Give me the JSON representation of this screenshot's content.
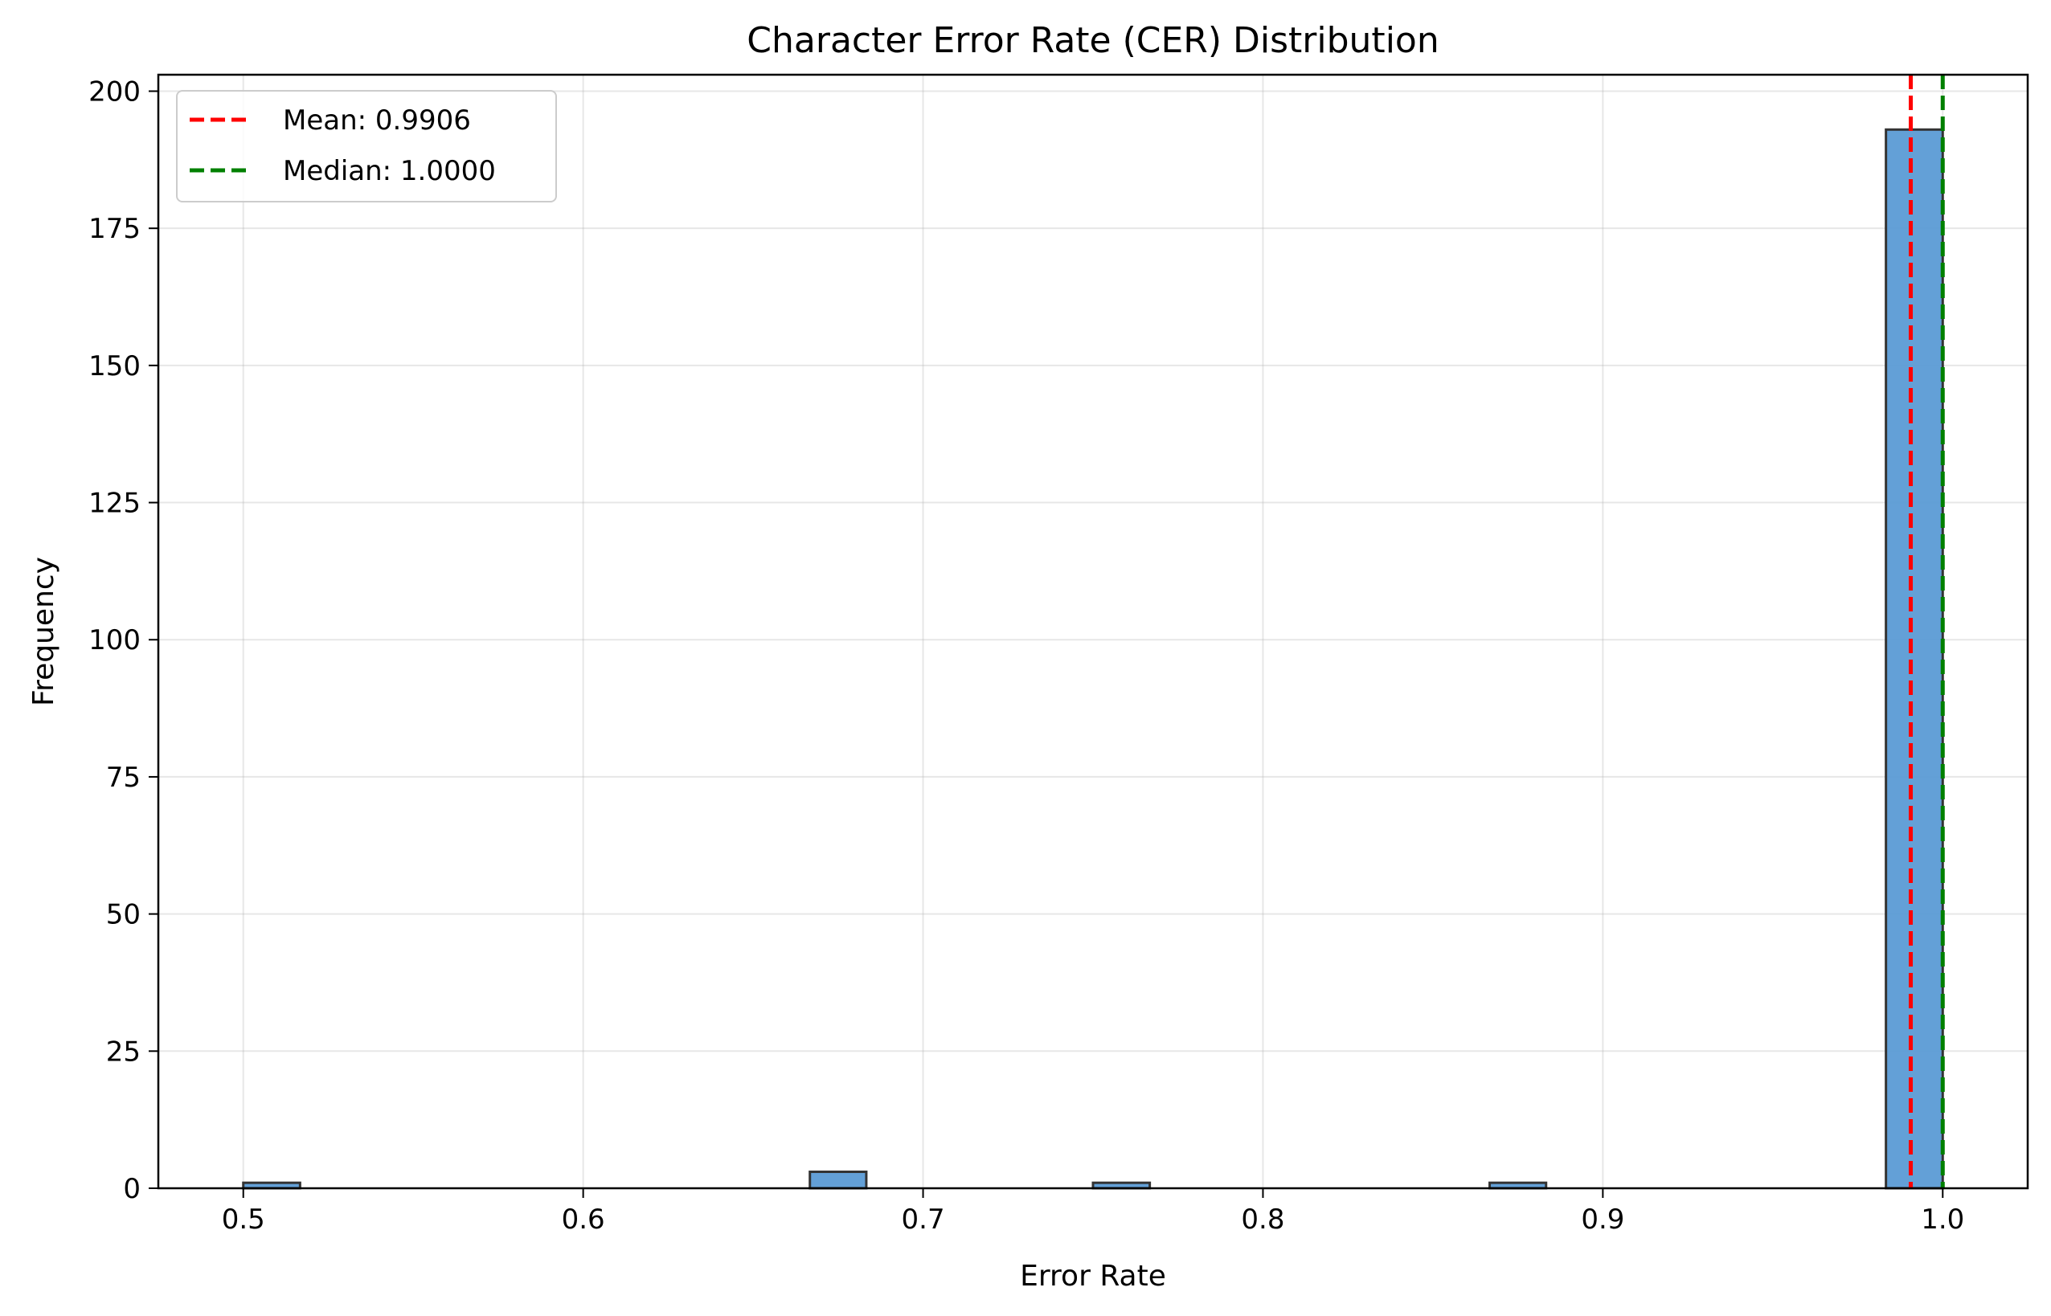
{
  "chart_data": {
    "type": "bar",
    "title": "Character Error Rate (CER) Distribution",
    "xlabel": "Error Rate",
    "ylabel": "Frequency",
    "xlim": [
      0.475,
      1.025
    ],
    "ylim": [
      0,
      203
    ],
    "xticks": [
      0.5,
      0.6,
      0.7,
      0.8,
      0.9,
      1.0
    ],
    "xtick_labels": [
      "0.5",
      "0.6",
      "0.7",
      "0.8",
      "0.9",
      "1.0"
    ],
    "yticks": [
      0,
      25,
      50,
      75,
      100,
      125,
      150,
      175,
      200
    ],
    "ytick_labels": [
      "0",
      "25",
      "50",
      "75",
      "100",
      "125",
      "150",
      "175",
      "200"
    ],
    "grid": true,
    "bar_color": "#5b9bd5",
    "bar_edge_color": "#333333",
    "bins": [
      {
        "x0": 0.5,
        "x1": 0.5167,
        "count": 1
      },
      {
        "x0": 0.6667,
        "x1": 0.6833,
        "count": 3
      },
      {
        "x0": 0.75,
        "x1": 0.7667,
        "count": 1
      },
      {
        "x0": 0.8667,
        "x1": 0.8833,
        "count": 1
      },
      {
        "x0": 0.9833,
        "x1": 1.0,
        "count": 193
      }
    ],
    "reference_lines": [
      {
        "value": 0.9906,
        "label": "Mean: 0.9906",
        "color": "#ff0000"
      },
      {
        "value": 1.0,
        "label": "Median: 1.0000",
        "color": "#008000"
      }
    ],
    "legend_position": "upper-left"
  }
}
